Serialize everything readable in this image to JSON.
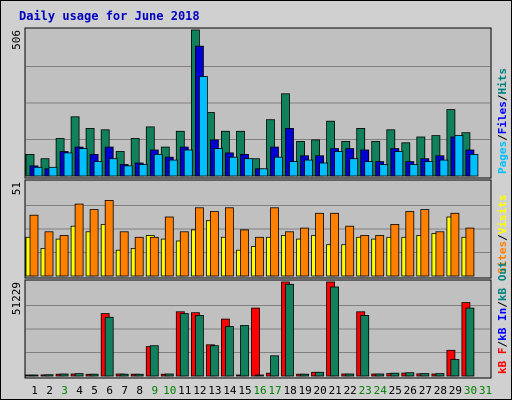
{
  "chart_data": {
    "type": "bar",
    "title": "Daily usage for June 2018",
    "days": [
      "1",
      "2",
      "3",
      "4",
      "5",
      "6",
      "7",
      "8",
      "9",
      "10",
      "11",
      "12",
      "13",
      "14",
      "15",
      "16",
      "17",
      "18",
      "19",
      "20",
      "21",
      "22",
      "23",
      "24",
      "25",
      "26",
      "27",
      "28",
      "29",
      "30",
      "31"
    ],
    "weekend_days": [
      "3",
      "9",
      "10",
      "16",
      "17",
      "23",
      "24",
      "30",
      "31"
    ],
    "panels": [
      {
        "id": "hits",
        "axis_max_label": "506",
        "max": 506,
        "legend": [
          {
            "text": "Hits",
            "color": "#008080"
          },
          {
            "text": "Files",
            "color": "#0000ff"
          },
          {
            "text": "Pages",
            "color": "#00bfff"
          }
        ],
        "series": [
          {
            "name": "Hits",
            "color": "#11805c",
            "values": [
              75,
              60,
              130,
              205,
              165,
              160,
              85,
              130,
              170,
              100,
              155,
              506,
              220,
              155,
              155,
              60,
              195,
              285,
              120,
              125,
              190,
              120,
              165,
              120,
              160,
              115,
              135,
              140,
              230,
              150,
              0
            ]
          },
          {
            "name": "Files",
            "color": "#0000d0",
            "values": [
              35,
              25,
              85,
              100,
              75,
              100,
              40,
              45,
              90,
              65,
              100,
              450,
              125,
              80,
              75,
              25,
              100,
              165,
              70,
              70,
              95,
              95,
              90,
              50,
              95,
              50,
              60,
              70,
              135,
              90,
              0
            ]
          },
          {
            "name": "Pages",
            "color": "#00bfff",
            "values": [
              30,
              30,
              80,
              95,
              50,
              60,
              35,
              40,
              75,
              55,
              90,
              345,
              95,
              65,
              60,
              25,
              65,
              50,
              55,
              45,
              85,
              60,
              50,
              40,
              85,
              40,
              50,
              55,
              140,
              75,
              0
            ]
          }
        ]
      },
      {
        "id": "visits",
        "axis_max_label": "51",
        "max": 51,
        "legend": [
          {
            "text": "Visits",
            "color": "#ffff00"
          },
          {
            "text": "Sites",
            "color": "#ff8000"
          }
        ],
        "series": [
          {
            "name": "Visits",
            "color": "#ffff00",
            "values": [
              21,
              15,
              20,
              27,
              24,
              28,
              14,
              15,
              22,
              20,
              19,
              25,
              30,
              21,
              14,
              16,
              21,
              22,
              20,
              22,
              17,
              17,
              21,
              20,
              21,
              21,
              22,
              23,
              32,
              21,
              0
            ]
          },
          {
            "name": "Sites",
            "color": "#ff8000",
            "values": [
              33,
              24,
              22,
              39,
              36,
              41,
              24,
              21,
              21,
              32,
              24,
              37,
              35,
              37,
              25,
              21,
              37,
              24,
              26,
              34,
              34,
              27,
              22,
              22,
              28,
              35,
              36,
              24,
              34,
              26,
              0
            ]
          }
        ]
      },
      {
        "id": "kbytes",
        "axis_max_label": "51229",
        "max": 51229,
        "legend": [
          {
            "text": "kB Out",
            "color": "#008080"
          },
          {
            "text": "kB In",
            "color": "#0000ff"
          },
          {
            "text": "kB F",
            "color": "#ff0000"
          }
        ],
        "series": [
          {
            "name": "kB F",
            "color": "#ff0000",
            "values": [
              450,
              600,
              1000,
              1100,
              900,
              34000,
              1100,
              1000,
              16000,
              1000,
              35000,
              34500,
              17000,
              31000,
              500,
              37000,
              1500,
              51229,
              1000,
              2000,
              51229,
              1100,
              35000,
              1100,
              1300,
              1600,
              1200,
              1100,
              14000,
              40000,
              0
            ]
          },
          {
            "name": "kB Out",
            "color": "#11805c",
            "values": [
              500,
              700,
              1100,
              1300,
              1000,
              32000,
              1000,
              900,
              16500,
              1100,
              34000,
              33000,
              16500,
              27000,
              27500,
              500,
              11000,
              50000,
              1000,
              2000,
              48500,
              1100,
              33000,
              1100,
              1500,
              1800,
              1300,
              1300,
              9000,
              37000,
              0
            ]
          }
        ]
      }
    ]
  }
}
